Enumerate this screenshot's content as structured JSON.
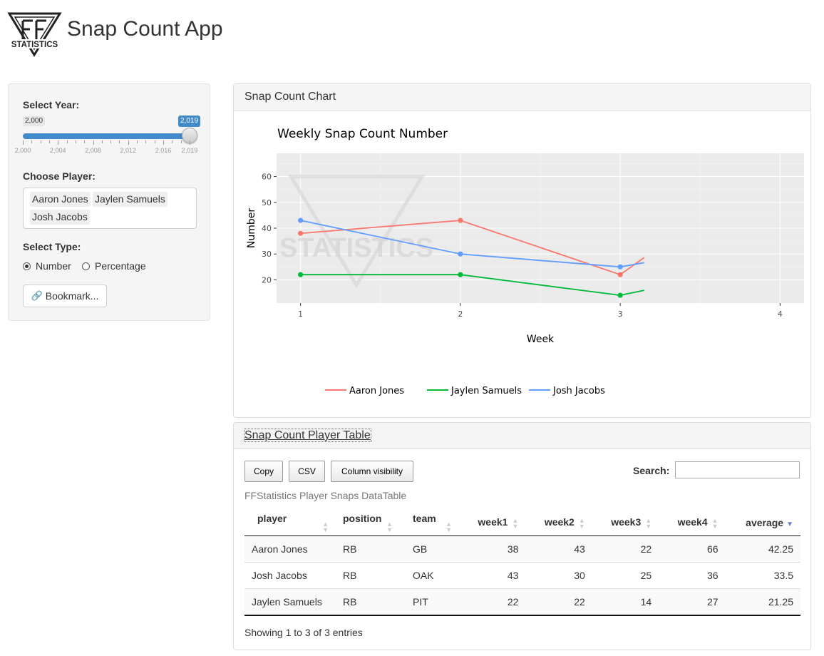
{
  "header": {
    "logo_text": "STATISTICS",
    "title": "Snap Count App"
  },
  "sidebar": {
    "year_label": "Select Year:",
    "year_min_badge": "2,000",
    "year_max_badge": "2,019",
    "year_ticks": [
      "2,000",
      "2,004",
      "2,008",
      "2,012",
      "2,016",
      "2,019"
    ],
    "player_label": "Choose Player:",
    "selected_players": [
      "Aaron Jones",
      "Jaylen Samuels",
      "Josh Jacobs"
    ],
    "type_label": "Select Type:",
    "type_options": [
      "Number",
      "Percentage"
    ],
    "type_selected": "Number",
    "bookmark_label": "Bookmark..."
  },
  "chart_panel": {
    "heading": "Snap Count Chart"
  },
  "chart_data": {
    "type": "line",
    "title": "Weekly Snap Count Number",
    "xlabel": "Week",
    "ylabel": "Number",
    "x_ticks": [
      1,
      2,
      3,
      4
    ],
    "y_ticks": [
      20,
      30,
      40,
      50,
      60
    ],
    "xlim": [
      0.85,
      4.15
    ],
    "ylim": [
      11,
      69
    ],
    "watermark": "STATISTICS",
    "series": [
      {
        "name": "Aaron Jones",
        "color": "#F8766D",
        "x": [
          1,
          2,
          3
        ],
        "values": [
          38,
          43,
          22
        ],
        "tail_toward": [
          4,
          66
        ]
      },
      {
        "name": "Jaylen Samuels",
        "color": "#00BA38",
        "x": [
          1,
          2,
          3
        ],
        "values": [
          22,
          22,
          14
        ],
        "tail_toward": [
          4,
          27
        ]
      },
      {
        "name": "Josh Jacobs",
        "color": "#619CFF",
        "x": [
          1,
          2,
          3
        ],
        "values": [
          43,
          30,
          25
        ],
        "tail_toward": [
          4,
          36
        ]
      }
    ],
    "legend": [
      "Aaron Jones",
      "Jaylen Samuels",
      "Josh Jacobs"
    ]
  },
  "table_panel": {
    "heading": "Snap Count Player Table",
    "buttons": [
      "Copy",
      "CSV",
      "Column visibility"
    ],
    "search_label": "Search:",
    "caption": "FFStatistics Player Snaps DataTable",
    "columns": [
      "player",
      "position",
      "team",
      "week1",
      "week2",
      "week3",
      "week4",
      "average"
    ],
    "rows": [
      [
        "Aaron Jones",
        "RB",
        "GB",
        "38",
        "43",
        "22",
        "66",
        "42.25"
      ],
      [
        "Josh Jacobs",
        "RB",
        "OAK",
        "43",
        "30",
        "25",
        "36",
        "33.5"
      ],
      [
        "Jaylen Samuels",
        "RB",
        "PIT",
        "22",
        "22",
        "14",
        "27",
        "21.25"
      ]
    ],
    "info": "Showing 1 to 3 of 3 entries"
  }
}
